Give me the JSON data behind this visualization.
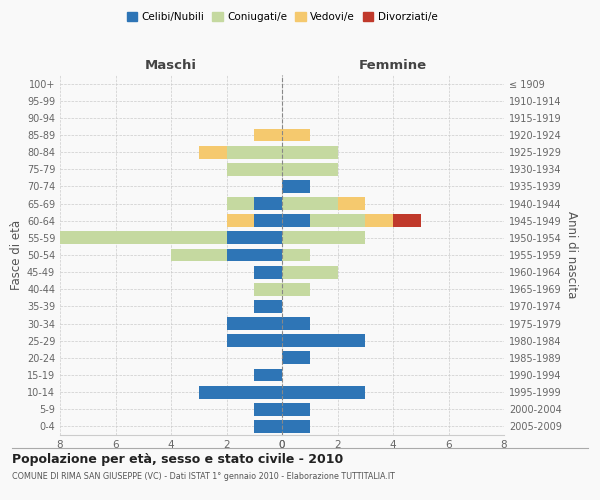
{
  "age_groups": [
    "0-4",
    "5-9",
    "10-14",
    "15-19",
    "20-24",
    "25-29",
    "30-34",
    "35-39",
    "40-44",
    "45-49",
    "50-54",
    "55-59",
    "60-64",
    "65-69",
    "70-74",
    "75-79",
    "80-84",
    "85-89",
    "90-94",
    "95-99",
    "100+"
  ],
  "birth_years": [
    "2005-2009",
    "2000-2004",
    "1995-1999",
    "1990-1994",
    "1985-1989",
    "1980-1984",
    "1975-1979",
    "1970-1974",
    "1965-1969",
    "1960-1964",
    "1955-1959",
    "1950-1954",
    "1945-1949",
    "1940-1944",
    "1935-1939",
    "1930-1934",
    "1925-1929",
    "1920-1924",
    "1915-1919",
    "1910-1914",
    "≤ 1909"
  ],
  "males": {
    "celibi": [
      1,
      1,
      3,
      1,
      0,
      2,
      2,
      1,
      0,
      1,
      2,
      2,
      1,
      1,
      0,
      0,
      0,
      0,
      0,
      0,
      0
    ],
    "coniugati": [
      0,
      0,
      0,
      0,
      0,
      0,
      0,
      0,
      1,
      0,
      2,
      7,
      0,
      1,
      0,
      2,
      2,
      0,
      0,
      0,
      0
    ],
    "vedovi": [
      0,
      0,
      0,
      0,
      0,
      0,
      0,
      0,
      0,
      0,
      0,
      0,
      1,
      0,
      0,
      0,
      1,
      1,
      0,
      0,
      0
    ],
    "divorziati": [
      0,
      0,
      0,
      0,
      0,
      0,
      0,
      0,
      0,
      0,
      0,
      0,
      0,
      0,
      0,
      0,
      0,
      0,
      0,
      0,
      0
    ]
  },
  "females": {
    "nubili": [
      1,
      1,
      3,
      0,
      1,
      3,
      1,
      0,
      0,
      0,
      0,
      0,
      1,
      0,
      1,
      0,
      0,
      0,
      0,
      0,
      0
    ],
    "coniugate": [
      0,
      0,
      0,
      0,
      0,
      0,
      0,
      0,
      1,
      2,
      1,
      3,
      2,
      2,
      0,
      2,
      2,
      0,
      0,
      0,
      0
    ],
    "vedove": [
      0,
      0,
      0,
      0,
      0,
      0,
      0,
      0,
      0,
      0,
      0,
      0,
      1,
      1,
      0,
      0,
      0,
      1,
      0,
      0,
      0
    ],
    "divorziate": [
      0,
      0,
      0,
      0,
      0,
      0,
      0,
      0,
      0,
      0,
      0,
      0,
      1,
      0,
      0,
      0,
      0,
      0,
      0,
      0,
      0
    ]
  },
  "colors": {
    "celibi_nubili": "#2e75b6",
    "coniugati": "#c5d9a0",
    "vedovi": "#f5c96e",
    "divorziati": "#c0392b"
  },
  "xlim": 8,
  "title": "Popolazione per età, sesso e stato civile - 2010",
  "subtitle": "COMUNE DI RIMA SAN GIUSEPPE (VC) - Dati ISTAT 1° gennaio 2010 - Elaborazione TUTTITALIA.IT",
  "ylabel_left": "Fasce di età",
  "ylabel_right": "Anni di nascita",
  "xlabel_left": "Maschi",
  "xlabel_right": "Femmine",
  "background_color": "#f9f9f9",
  "grid_color": "#cccccc"
}
